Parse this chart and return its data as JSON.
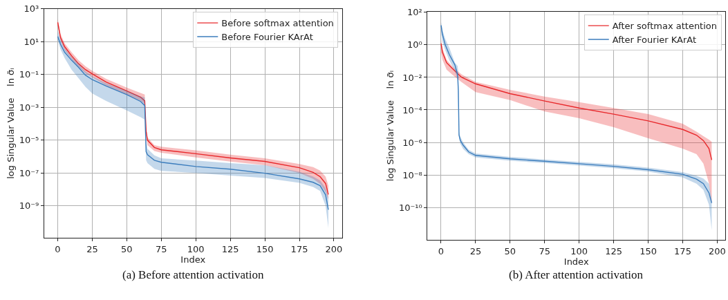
{
  "chart_data": [
    {
      "type": "line",
      "xlabel": "Index",
      "ylabel": "log Singular Value    ln σ̄ᵢ",
      "log": "y",
      "grid": true,
      "legend": "top right",
      "xlim": [
        -9.8,
        205.8
      ],
      "xticks": [
        0,
        25,
        50,
        75,
        100,
        125,
        150,
        175,
        200
      ],
      "ylim": [
        1.1e-11,
        1000
      ],
      "yticks": [
        {
          "value": 1000,
          "label": "10³"
        },
        {
          "value": 10,
          "label": "10¹"
        },
        {
          "value": 0.1,
          "label": "10⁻¹"
        },
        {
          "value": 0.001,
          "label": "10⁻³"
        },
        {
          "value": 1e-05,
          "label": "10⁻⁵"
        },
        {
          "value": 1e-07,
          "label": "10⁻⁷"
        },
        {
          "value": 1e-09,
          "label": "10⁻⁹"
        }
      ],
      "annotations": [
        "(a) Before attention activation"
      ],
      "series": [
        {
          "name": "Before softmax attention",
          "color": "#e8282b",
          "x": [
            0,
            2,
            5,
            10,
            15,
            20,
            25,
            35,
            50,
            60,
            63,
            64,
            65,
            70,
            75,
            100,
            125,
            150,
            175,
            185,
            190,
            194,
            196
          ],
          "values": [
            150,
            18,
            5,
            1.4,
            0.46,
            0.2,
            0.11,
            0.035,
            0.01,
            0.0042,
            0.0025,
            3.6e-05,
            1e-05,
            3.6e-06,
            2.6e-06,
            1.5e-06,
            8.3e-07,
            5.1e-07,
            2.1e-07,
            1.1e-07,
            6e-08,
            2.3e-08,
            4.9e-09
          ],
          "lower": [
            90,
            11,
            3,
            0.87,
            0.3,
            0.12,
            0.068,
            0.022,
            0.006,
            0.0025,
            0.0017,
            2e-05,
            5e-06,
            2.2e-06,
            1.7e-06,
            9e-07,
            5e-07,
            3e-07,
            1e-07,
            4.4e-08,
            2.2e-08,
            7e-09,
            2.5e-09
          ],
          "upper": [
            240,
            30,
            8,
            2.3,
            0.75,
            0.32,
            0.17,
            0.055,
            0.016,
            0.0075,
            0.006,
            6e-05,
            1.5e-05,
            5e-06,
            4e-06,
            2.4e-06,
            1.3e-06,
            7.8e-07,
            3.5e-07,
            2.3e-07,
            1.4e-07,
            6e-08,
            1.7e-08
          ]
        },
        {
          "name": "Before Fourier KArAt",
          "color": "#3b7dbd",
          "x": [
            0,
            2,
            5,
            10,
            15,
            20,
            25,
            35,
            50,
            60,
            63,
            64,
            65,
            70,
            75,
            100,
            125,
            150,
            175,
            185,
            190,
            194,
            196
          ],
          "values": [
            21,
            7,
            2.3,
            0.75,
            0.28,
            0.093,
            0.049,
            0.02,
            0.006,
            0.0023,
            0.0013,
            2e-06,
            1.3e-06,
            6e-07,
            4.5e-07,
            2.5e-07,
            1.7e-07,
            9.7e-08,
            4.4e-08,
            2.7e-08,
            1.7e-08,
            4.7e-09,
            5.8e-10
          ],
          "lower": [
            13,
            3.5,
            1,
            0.2,
            0.06,
            0.018,
            0.007,
            0.0025,
            0.00065,
            0.00025,
            0.00018,
            6e-07,
            4e-07,
            1.8e-07,
            1.35e-07,
            1e-07,
            7e-08,
            5e-08,
            2.5e-08,
            1.4e-08,
            8e-09,
            1e-09,
            4.5e-11
          ],
          "upper": [
            48,
            15,
            4,
            1.2,
            0.45,
            0.16,
            0.08,
            0.03,
            0.01,
            0.0045,
            0.004,
            1e-05,
            3e-06,
            1.2e-06,
            7.8e-07,
            5.8e-07,
            4e-07,
            3e-07,
            1.2e-07,
            6e-08,
            3.5e-08,
            1.2e-08,
            3.4e-09
          ]
        }
      ]
    },
    {
      "type": "line",
      "xlabel": "Index",
      "ylabel": "log Singular Value    ln σ̄ᵢ",
      "log": "y",
      "grid": true,
      "legend": "top right",
      "xlim": [
        -9.8,
        205.8
      ],
      "xticks": [
        0,
        25,
        50,
        75,
        100,
        125,
        150,
        175,
        200
      ],
      "ylim": [
        1e-12,
        110
      ],
      "yticks": [
        {
          "value": 100,
          "label": "10²"
        },
        {
          "value": 1,
          "label": "10⁰"
        },
        {
          "value": 0.01,
          "label": "10⁻²"
        },
        {
          "value": 0.0001,
          "label": "10⁻⁴"
        },
        {
          "value": 1e-06,
          "label": "10⁻⁶"
        },
        {
          "value": 1e-08,
          "label": "10⁻⁸"
        },
        {
          "value": 1e-10,
          "label": "10⁻¹⁰"
        }
      ],
      "annotations": [
        "(b) After attention activation"
      ],
      "series": [
        {
          "name": "After softmax attention",
          "color": "#e8282b",
          "x": [
            0,
            1,
            4,
            8,
            12,
            15,
            25,
            50,
            75,
            100,
            125,
            150,
            175,
            185,
            190,
            194,
            196
          ],
          "values": [
            1.2,
            0.35,
            0.08,
            0.036,
            0.017,
            0.01,
            0.004,
            0.001,
            0.00035,
            0.00013,
            5.5e-05,
            2.1e-05,
            6.3e-06,
            2.8e-06,
            1.3e-06,
            4.2e-07,
            8.4e-08
          ],
          "lower": [
            0.35,
            0.12,
            0.03,
            0.015,
            0.008,
            0.005,
            0.00125,
            0.0004,
            8e-05,
            3.1e-05,
            8.7e-06,
            1.8e-06,
            4.2e-07,
            1.9e-07,
            5e-08,
            3e-09,
            1.6e-10
          ],
          "upper": [
            2.4,
            0.6,
            0.12,
            0.05,
            0.024,
            0.015,
            0.0053,
            0.0017,
            0.00066,
            0.0003,
            0.00013,
            5.5e-05,
            1.4e-05,
            4.6e-06,
            2.4e-06,
            1.5e-06,
            1.1e-06
          ]
        },
        {
          "name": "After Fourier KArAt",
          "color": "#3b7dbd",
          "x": [
            0,
            1,
            3,
            6,
            10,
            12,
            12.5,
            13,
            14,
            16,
            20,
            25,
            50,
            75,
            100,
            125,
            150,
            175,
            185,
            190,
            194,
            196
          ],
          "values": [
            16,
            4.5,
            1,
            0.25,
            0.059,
            0.014,
            0.0015,
            2.8e-06,
            1.3e-06,
            6.8e-07,
            2.6e-07,
            1.6e-07,
            9.8e-08,
            7e-08,
            4.9e-08,
            3.4e-08,
            2.1e-08,
            1.1e-08,
            5.5e-09,
            2.9e-09,
            8e-10,
            1.9e-10
          ],
          "lower": [
            6,
            1.5,
            0.48,
            0.11,
            0.026,
            0.0074,
            0.00015,
            1.8e-06,
            8e-07,
            4e-07,
            1.9e-07,
            1.2e-07,
            7.5e-08,
            5.4e-08,
            3.8e-08,
            2.6e-08,
            1.6e-08,
            7e-09,
            2.9e-09,
            1.2e-09,
            1.5e-10,
            4e-12
          ],
          "upper": [
            26,
            8,
            2.3,
            0.65,
            0.08,
            0.05,
            0.02,
            4.6e-06,
            2.2e-06,
            1e-06,
            3.5e-07,
            2.1e-07,
            1.3e-07,
            9e-08,
            6.4e-08,
            4.5e-08,
            2.8e-08,
            1.5e-08,
            9e-09,
            6e-09,
            2.9e-09,
            3.1e-10
          ]
        }
      ]
    }
  ]
}
